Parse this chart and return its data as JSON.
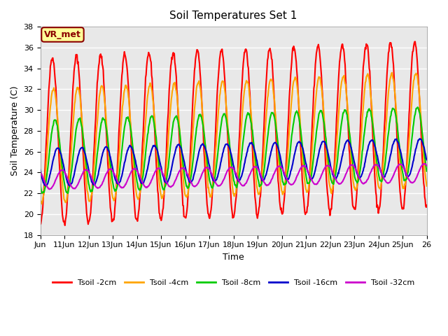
{
  "title": "Soil Temperatures Set 1",
  "xlabel": "Time",
  "ylabel": "Soil Temperature (C)",
  "ylim": [
    18,
    38
  ],
  "xlim": [
    0,
    16
  ],
  "bg_color": "#e8e8e8",
  "grid_color": "white",
  "annotation_text": "VR_met",
  "annotation_color": "#8B0000",
  "annotation_bg": "#FFFF99",
  "annotation_border": "#8B0000",
  "x_tick_positions": [
    0,
    1,
    2,
    3,
    4,
    5,
    6,
    7,
    8,
    9,
    10,
    11,
    12,
    13,
    14,
    15,
    16
  ],
  "x_tick_labels": [
    "Jun",
    "11Jun",
    "12Jun",
    "13Jun",
    "14Jun",
    "15Jun",
    "16Jun",
    "17Jun",
    "18Jun",
    "19Jun",
    "20Jun",
    "21Jun",
    "22Jun",
    "23Jun",
    "24Jun",
    "25Jun",
    "26"
  ],
  "series_names": [
    "Tsoil -2cm",
    "Tsoil -4cm",
    "Tsoil -8cm",
    "Tsoil -16cm",
    "Tsoil -32cm"
  ],
  "series_colors": [
    "#FF0000",
    "#FFA500",
    "#00CC00",
    "#0000CC",
    "#CC00CC"
  ],
  "series_lw": [
    1.5,
    1.5,
    1.5,
    1.5,
    1.5
  ],
  "amp_2cm": 8.0,
  "base_2cm": 27.0,
  "amp_4cm": 5.5,
  "base_4cm": 26.5,
  "amp_8cm": 3.5,
  "base_8cm": 25.5,
  "amp_16cm": 1.8,
  "base_16cm": 24.5,
  "amp_32cm": 0.9,
  "base_32cm": 23.3
}
